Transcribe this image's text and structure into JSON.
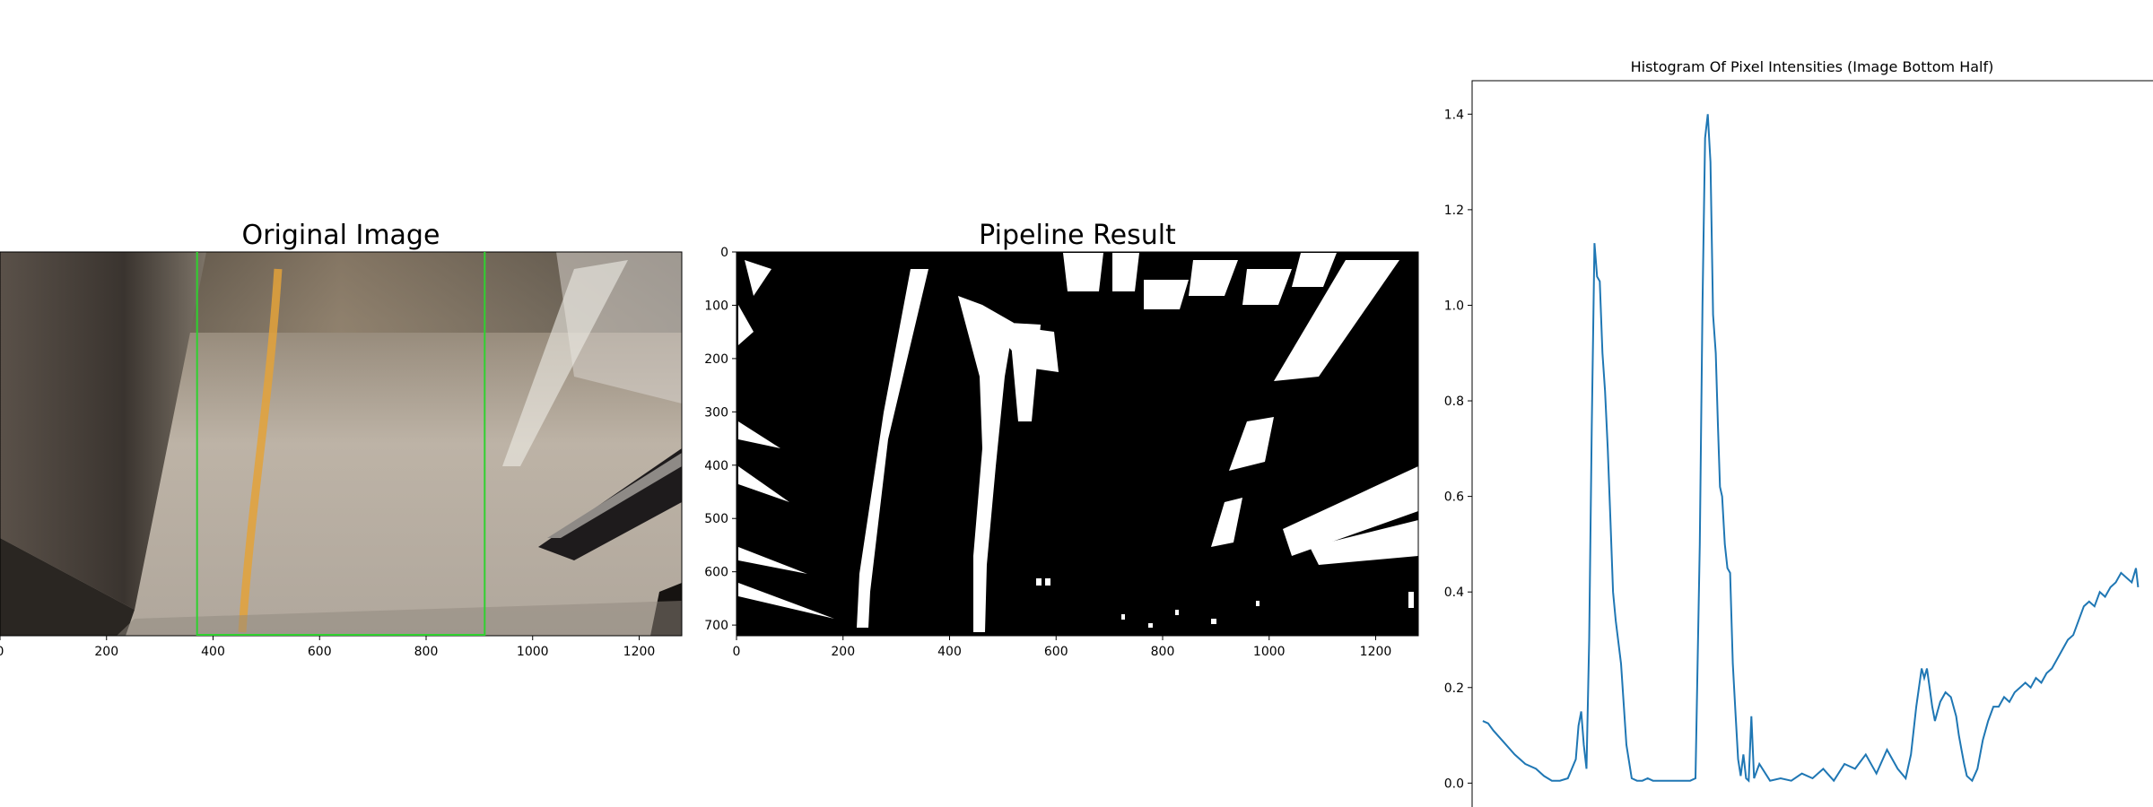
{
  "chart_data": [
    {
      "type": "image",
      "title": "Original Image",
      "xlim": [
        0,
        1280
      ],
      "ylim": [
        720,
        0
      ],
      "xticks": [
        0,
        200,
        400,
        600,
        800,
        1000,
        1200
      ],
      "yticks": [],
      "overlay_vertical_lines_x": [
        370,
        910
      ],
      "overlay_bottom_line": [
        370,
        910
      ],
      "overlay_color": "#2fd12f"
    },
    {
      "type": "image",
      "title": "Pipeline Result",
      "xlim": [
        0,
        1280
      ],
      "ylim": [
        720,
        0
      ],
      "xticks": [
        0,
        200,
        400,
        600,
        800,
        1000,
        1200
      ],
      "yticks": [
        0,
        100,
        200,
        300,
        400,
        500,
        600,
        700
      ]
    },
    {
      "type": "line",
      "title": "Histogram Of Pixel Intensities (Image Bottom Half)",
      "xlabel": "",
      "ylabel": "",
      "xlim": [
        0,
        1280
      ],
      "ylim": [
        -0.05,
        1.47
      ],
      "yticks": [
        0.0,
        0.2,
        0.4,
        0.6,
        0.8,
        1.0,
        1.2,
        1.4
      ],
      "grid": false,
      "series": [
        {
          "color": "#1f77b4",
          "x": [
            20,
            30,
            40,
            60,
            80,
            100,
            120,
            135,
            150,
            165,
            180,
            195,
            200,
            205,
            210,
            215,
            220,
            225,
            230,
            235,
            240,
            245,
            250,
            255,
            260,
            265,
            270,
            280,
            290,
            300,
            310,
            320,
            330,
            340,
            350,
            360,
            370,
            380,
            390,
            400,
            410,
            420,
            428,
            433,
            438,
            443,
            448,
            453,
            458,
            462,
            466,
            470,
            475,
            480,
            485,
            490,
            495,
            500,
            505,
            510,
            515,
            520,
            525,
            530,
            540,
            560,
            580,
            600,
            620,
            640,
            660,
            680,
            700,
            720,
            740,
            760,
            780,
            800,
            815,
            825,
            835,
            840,
            845,
            850,
            855,
            860,
            865,
            870,
            875,
            880,
            890,
            900,
            910,
            915,
            920,
            925,
            930,
            940,
            950,
            960,
            970,
            980,
            990,
            1000,
            1010,
            1020,
            1030,
            1040,
            1050,
            1060,
            1070,
            1080,
            1090,
            1100,
            1110,
            1120,
            1130,
            1140,
            1150,
            1160,
            1170,
            1180,
            1190,
            1200,
            1210,
            1220,
            1230,
            1240,
            1248,
            1252
          ],
          "y": [
            0.13,
            0.125,
            0.11,
            0.085,
            0.06,
            0.04,
            0.03,
            0.015,
            0.005,
            0.005,
            0.01,
            0.05,
            0.12,
            0.15,
            0.08,
            0.03,
            0.3,
            0.75,
            1.13,
            1.06,
            1.05,
            0.9,
            0.82,
            0.7,
            0.55,
            0.4,
            0.34,
            0.25,
            0.08,
            0.01,
            0.005,
            0.005,
            0.01,
            0.005,
            0.005,
            0.005,
            0.005,
            0.005,
            0.005,
            0.005,
            0.005,
            0.01,
            0.5,
            1.0,
            1.35,
            1.4,
            1.3,
            0.98,
            0.9,
            0.75,
            0.62,
            0.6,
            0.5,
            0.45,
            0.44,
            0.25,
            0.15,
            0.05,
            0.015,
            0.06,
            0.01,
            0.005,
            0.14,
            0.01,
            0.04,
            0.005,
            0.01,
            0.005,
            0.02,
            0.01,
            0.03,
            0.005,
            0.04,
            0.03,
            0.06,
            0.02,
            0.07,
            0.03,
            0.01,
            0.06,
            0.16,
            0.2,
            0.24,
            0.22,
            0.24,
            0.2,
            0.16,
            0.13,
            0.15,
            0.17,
            0.19,
            0.18,
            0.14,
            0.1,
            0.07,
            0.04,
            0.015,
            0.005,
            0.03,
            0.09,
            0.13,
            0.16,
            0.16,
            0.18,
            0.17,
            0.19,
            0.2,
            0.21,
            0.2,
            0.22,
            0.21,
            0.23,
            0.24,
            0.26,
            0.28,
            0.3,
            0.31,
            0.34,
            0.37,
            0.38,
            0.37,
            0.4,
            0.39,
            0.41,
            0.42,
            0.44,
            0.43,
            0.42,
            0.45,
            0.41
          ]
        }
      ]
    }
  ]
}
